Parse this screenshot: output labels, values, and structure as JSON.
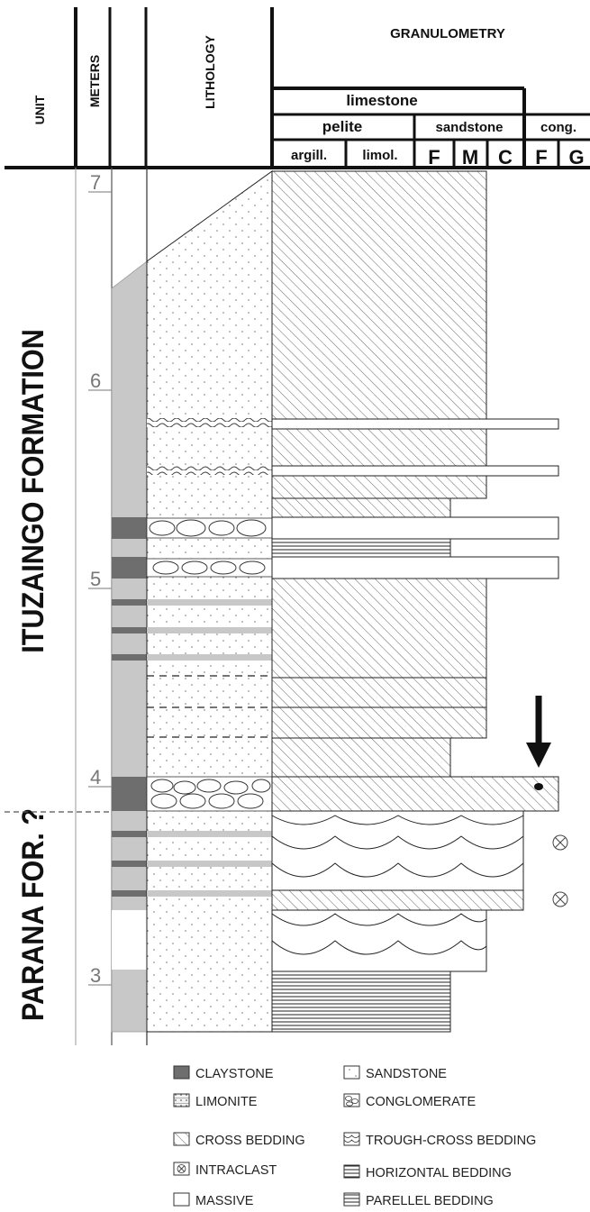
{
  "header": {
    "unit": "UNIT",
    "meters": "METERS",
    "lithology": "LITHOLOGY",
    "granulometry": "GRANULOMETRY",
    "limestone": "limestone",
    "pelite": "pelite",
    "sandstone": "sandstone",
    "cong": "cong.",
    "argill": "argill.",
    "limol": "limol.",
    "sand_f": "F",
    "sand_m": "M",
    "sand_c": "C",
    "cong_f": "F",
    "cong_g": "G"
  },
  "formations": {
    "upper": "ITUZAINGO FORMATION",
    "lower": "PARANA FOR. ?"
  },
  "scale": {
    "ticks": [
      "7",
      "6",
      "5",
      "4",
      "3"
    ]
  },
  "legend": {
    "claystone": "CLAYSTONE",
    "sandstone": "SANDSTONE",
    "limonite": "LIMONITE",
    "conglomerate": "CONGLOMERATE",
    "cross_bedding": "CROSS BEDDING",
    "trough_cross_bedding": "TROUGH-CROSS BEDDING",
    "intraclast": "INTRACLAST",
    "horizontal_bedding": "HORIZONTAL BEDDING",
    "massive": "MASSIVE",
    "parallel_bedding": "PARELLEL BEDDING"
  },
  "colors": {
    "claystone": "#6e6e6e",
    "limonite_band": "#c8c8c8",
    "line": "#111111"
  }
}
